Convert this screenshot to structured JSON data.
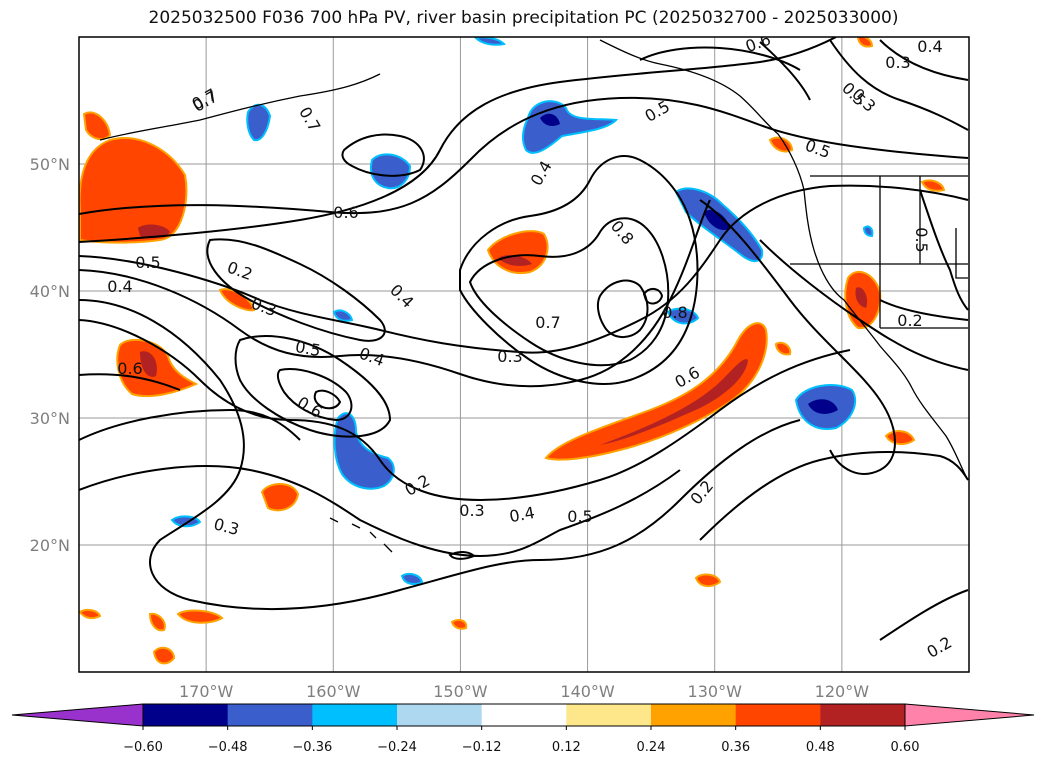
{
  "title": "2025032500 F036 700 hPa PV, river basin precipitation PC (2025032700 - 2025033000)",
  "axes": {
    "lon_ticks": [
      {
        "lon": -170,
        "label": "170°W"
      },
      {
        "lon": -160,
        "label": "160°W"
      },
      {
        "lon": -150,
        "label": "150°W"
      },
      {
        "lon": -140,
        "label": "140°W"
      },
      {
        "lon": -130,
        "label": "130°W"
      },
      {
        "lon": -120,
        "label": "120°W"
      }
    ],
    "lat_ticks": [
      {
        "lat": 50,
        "label": "50°N"
      },
      {
        "lat": 40,
        "label": "40°N"
      },
      {
        "lat": 30,
        "label": "30°N"
      },
      {
        "lat": 20,
        "label": "20°N"
      }
    ],
    "extent": {
      "lon_min": -180,
      "lon_max": -110,
      "lat_min": 10,
      "lat_max": 60
    }
  },
  "contour_labels": [
    "0.7",
    "0.7",
    "0.6",
    "0.5",
    "0.2",
    "0.3",
    "0.4",
    "0.5",
    "0.4",
    "0.6",
    "0.3",
    "0.7",
    "0.8",
    "0.8",
    "0.6",
    "0.5",
    "0.4",
    "0.3",
    "0.2",
    "0.3",
    "0.4",
    "0.5",
    "0.6",
    "0.4",
    "0.3",
    "0.5",
    "0.2",
    "0.2",
    "0.7",
    "0.6",
    "0.5",
    "0.4",
    "0.5",
    "0.2",
    "0.3"
  ],
  "colorbar": {
    "bounds": [
      -0.72,
      -0.6,
      -0.48,
      -0.36,
      -0.24,
      -0.12,
      0.12,
      0.24,
      0.36,
      0.48,
      0.6,
      0.72
    ],
    "colors": [
      "#8b2fc9",
      "#00008b",
      "#3a5fcd",
      "#00bfff",
      "#add8f0",
      "#ffffff",
      "#fde78a",
      "#ffa200",
      "#ff4500",
      "#b22222",
      "#ff88aa"
    ],
    "under_color": "#9932cc",
    "over_color": "#ff82ab",
    "tick_labels": [
      "−0.60",
      "−0.48",
      "−0.36",
      "−0.24",
      "−0.12",
      "0.12",
      "0.24",
      "0.36",
      "0.48",
      "0.60"
    ]
  }
}
